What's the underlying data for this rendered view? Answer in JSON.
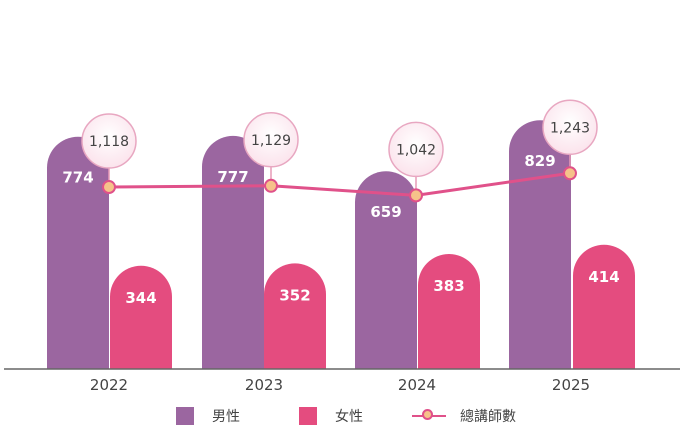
{
  "chart_data": {
    "type": "bar",
    "categories": [
      "2022",
      "2023",
      "2024",
      "2025"
    ],
    "series": [
      {
        "name": "男性",
        "type": "bar",
        "color": "#9b66a0",
        "values": [
          774,
          777,
          659,
          829
        ]
      },
      {
        "name": "女性",
        "type": "bar",
        "color": "#e44c7f",
        "values": [
          344,
          352,
          383,
          414
        ]
      },
      {
        "name": "總講師數",
        "type": "line",
        "color": "#e0518a",
        "marker_fill": "#f6c28a",
        "values": [
          1118,
          1129,
          1042,
          1243
        ]
      }
    ],
    "total_labels": [
      "1,118",
      "1,129",
      "1,042",
      "1,243"
    ],
    "ylim": [
      0,
      900
    ],
    "line_ylim": [
      900,
      1300
    ],
    "grid": false,
    "legend_position": "bottom"
  }
}
